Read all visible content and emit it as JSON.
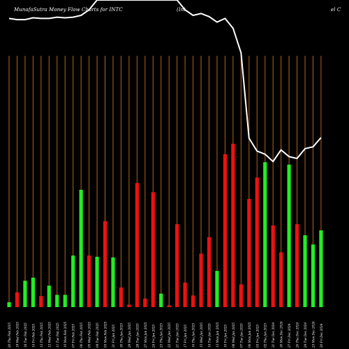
{
  "header": {
    "left": "MunafaSutra  Money Flow  Charts for INTC",
    "mid": "(Int",
    "right": "el C"
  },
  "colors": {
    "background": "#000000",
    "gridline": "#b8651b",
    "up": "#22ee22",
    "down": "#ee1111",
    "price_line": "#ffffff",
    "text": "#ffffff"
  },
  "chart_data": {
    "type": "bar",
    "title": "MunafaSutra Money Flow Charts for INTC (Intel C",
    "categories": [
      "20 Thu Feb 2025",
      "19 Wed Feb 2025",
      "18 Tue Feb 2025",
      "14 Fri Feb 2025",
      "13 Thu Feb 2025",
      "12 Wed Feb 2025",
      "11 Tue Feb 2025",
      "10 Mon Feb 2025",
      "07 Fri Feb 2025",
      "06 Thu Feb 2025",
      "05 Wed Feb 2025",
      "04 Tue Feb 2025",
      "03 Mon Feb 2025",
      "31 Fri Jan 2025",
      "30 Thu Jan 2025",
      "29 Wed Jan 2025",
      "28 Tue Jan 2025",
      "27 Mon Jan 2025",
      "24 Fri Jan 2025",
      "23 Thu Jan 2025",
      "22 Wed Jan 2025",
      "21 Tue Jan 2025",
      "17 Fri Jan 2025",
      "16 Thu Jan 2025",
      "15 Wed Jan 2025",
      "14 Tue Jan 2025",
      "13 Mon Jan 2025",
      "10 Fri Jan 2025",
      "08 Wed Jan 2025",
      "07 Tue Jan 2025",
      "06 Mon Jan 2025",
      "03 Fri Jan 2025",
      "02 Thu Jan 2025",
      "31 Tue Dec 2024",
      "30 Mon Dec 2024",
      "27 Fri Dec 2024",
      "26 Thu Dec 2024",
      "24 Tue Dec 2024",
      "23 Mon Dec 2024",
      "20 Fri Dec 2024"
    ],
    "axis_labels": [
      "20 Thu Feb 2025",
      "19 Wed Feb 2025",
      "18 Tue Feb 2025",
      "14 Fri Feb 2025",
      "13 Thu Feb 2025",
      "12 Wed Feb 2025",
      "11 Tue Feb 2025",
      "10 Mon Feb 2025",
      "07 Fri Feb 2025",
      "06 Thu Feb 2025",
      "05 Wed Feb 2025",
      "04 Tue Feb 2025",
      "03 Mon Feb 2025",
      "31 Fri Jan 2025",
      "30 Thu Jan 2025",
      "29 Wed Jan 2025",
      "28 Tue Jan 2025",
      "27 Mon Jan 2025",
      "24 Fri Jan 2025",
      "23 Thu Jan 2025",
      "22 Wed Jan 2025",
      "21 Tue Jan 2025",
      "17 Fri Jan 2025",
      "16 Thu Jan 2025",
      "15 Wed Jan 2025",
      "14 Tue Jan 2025",
      "13 Mon Jan 2025",
      "10 Fri Jan 2025",
      "08 Wed Jan 2025",
      "07 Tue Jan 2025",
      "06 Mon Jan 2025",
      "03 Fri Jan 2025",
      "02 Thu Jan 2025",
      "31 Tue Dec 2024",
      "30 Mon Dec 2024",
      "27 Fri Dec 2024",
      "26 Thu Dec 2024",
      "24 Tue Dec 2024",
      "23 Mon Dec 2024",
      "20 Fri Dec 2024"
    ],
    "money_flow": [
      {
        "value": 8,
        "dir": "up"
      },
      {
        "value": 24,
        "dir": "down"
      },
      {
        "value": 43,
        "dir": "up"
      },
      {
        "value": 48,
        "dir": "up"
      },
      {
        "value": 18,
        "dir": "down"
      },
      {
        "value": 35,
        "dir": "up"
      },
      {
        "value": 20,
        "dir": "up"
      },
      {
        "value": 20,
        "dir": "up"
      },
      {
        "value": 84,
        "dir": "up"
      },
      {
        "value": 191,
        "dir": "up"
      },
      {
        "value": 84,
        "dir": "down"
      },
      {
        "value": 82,
        "dir": "up"
      },
      {
        "value": 140,
        "dir": "down"
      },
      {
        "value": 81,
        "dir": "up"
      },
      {
        "value": 32,
        "dir": "down"
      },
      {
        "value": 4,
        "dir": "down"
      },
      {
        "value": 202,
        "dir": "down"
      },
      {
        "value": 14,
        "dir": "down"
      },
      {
        "value": 187,
        "dir": "down"
      },
      {
        "value": 22,
        "dir": "up"
      },
      {
        "value": 3,
        "dir": "down"
      },
      {
        "value": 135,
        "dir": "down"
      },
      {
        "value": 40,
        "dir": "down"
      },
      {
        "value": 19,
        "dir": "down"
      },
      {
        "value": 87,
        "dir": "down"
      },
      {
        "value": 114,
        "dir": "down"
      },
      {
        "value": 59,
        "dir": "up"
      },
      {
        "value": 249,
        "dir": "down"
      },
      {
        "value": 266,
        "dir": "down"
      },
      {
        "value": 37,
        "dir": "down"
      },
      {
        "value": 176,
        "dir": "down"
      },
      {
        "value": 211,
        "dir": "down"
      },
      {
        "value": 236,
        "dir": "up"
      },
      {
        "value": 133,
        "dir": "down"
      },
      {
        "value": 89,
        "dir": "down"
      },
      {
        "value": 232,
        "dir": "up"
      },
      {
        "value": 135,
        "dir": "down"
      },
      {
        "value": 117,
        "dir": "up"
      },
      {
        "value": 102,
        "dir": "up"
      },
      {
        "value": 125,
        "dir": "up"
      }
    ],
    "price_line": [
      470,
      468,
      468,
      471,
      470,
      470,
      472,
      471,
      472,
      475,
      484,
      500,
      500,
      500,
      500,
      500,
      500,
      500,
      500,
      500,
      500,
      500,
      484,
      475,
      478,
      473,
      464,
      470,
      454,
      414,
      275,
      254,
      249,
      237,
      256,
      245,
      242,
      258,
      261,
      276
    ],
    "ylim": [
      0,
      500
    ],
    "grid": true,
    "legend": "none"
  }
}
